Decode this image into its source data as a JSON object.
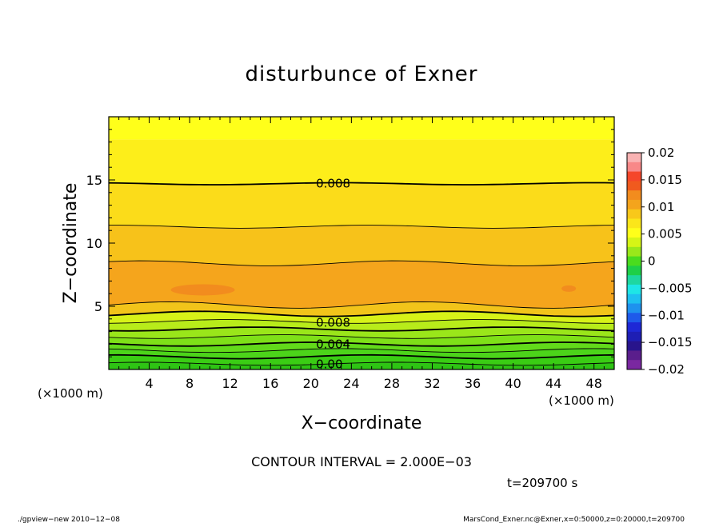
{
  "chart_data": {
    "type": "contour",
    "title": "disturbunce of Exner",
    "xlabel": "X−coordinate",
    "ylabel": "Z−coordinate",
    "x_unit": "(×1000 m)",
    "y_unit": "(×1000 m)",
    "xlim": [
      0,
      50
    ],
    "ylim": [
      0,
      20
    ],
    "x_ticks": [
      "4",
      "8",
      "12",
      "16",
      "20",
      "24",
      "28",
      "32",
      "36",
      "40",
      "44",
      "48"
    ],
    "y_ticks": [
      "5",
      "10",
      "15"
    ],
    "contour_interval_text": "CONTOUR INTERVAL = 2.000E−03",
    "time_text": "t=209700 s",
    "colorbar": {
      "ticks": [
        "0.02",
        "0.015",
        "0.01",
        "0.005",
        "0",
        "−0.005",
        "−0.01",
        "−0.015",
        "−0.02"
      ],
      "colors": [
        "#f9b3b3",
        "#f88888",
        "#f5462a",
        "#f05a1e",
        "#f28c1e",
        "#f4a41c",
        "#f8c81a",
        "#fbe61a",
        "#ffff1a",
        "#d6f516",
        "#9ae81a",
        "#4adc1e",
        "#1ecf48",
        "#1ed7a0",
        "#1ee6e6",
        "#1ec0f0",
        "#1e92ee",
        "#1e5aea",
        "#1e28d6",
        "#1e1eb4",
        "#28148c",
        "#5a1e8c",
        "#7a28a0"
      ]
    },
    "contour_labels": [
      {
        "text": "0.008",
        "x": 20.5,
        "z": 14.7
      },
      {
        "text": "0.008",
        "x": 20.5,
        "z": 3.7
      },
      {
        "text": "0.004",
        "x": 20.5,
        "z": 2.0
      },
      {
        "text": "0.00",
        "x": 20.5,
        "z": 0.4
      }
    ]
  },
  "footer": {
    "left": "./gpview−new   2010−12−08",
    "right": "MarsCond_Exner.nc@Exner,x=0:50000,z=0:20000,t=209700"
  }
}
